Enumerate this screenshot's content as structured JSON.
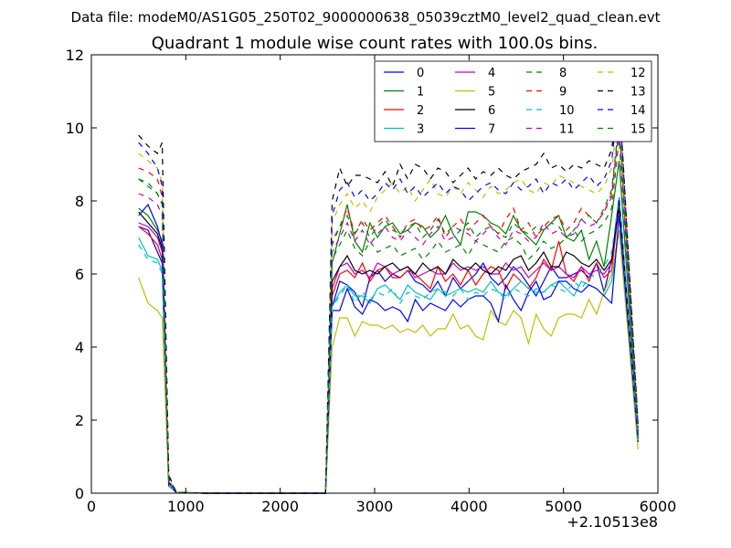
{
  "chart_data": {
    "type": "line",
    "suptitle": "Data file: modeM0/AS1G05_250T02_9000000638_05039cztM0_level2_quad_clean.evt",
    "title": "Quadrant 1 module wise count rates with 100.0s bins.",
    "xlabel": "",
    "ylabel": "",
    "x_offset_label": "+2.10513e8",
    "xlim": [
      0,
      6000
    ],
    "ylim": [
      0,
      12
    ],
    "x_ticks": [
      0,
      1000,
      2000,
      3000,
      4000,
      5000,
      6000
    ],
    "y_ticks": [
      0,
      2,
      4,
      6,
      8,
      10,
      12
    ],
    "x_tick_labels": [
      "0",
      "1000",
      "2000",
      "3000",
      "4000",
      "5000",
      "6000"
    ],
    "y_tick_labels": [
      "0",
      "2",
      "4",
      "6",
      "8",
      "10",
      "12"
    ],
    "grid": false,
    "legend_position": "top-right",
    "series": [
      {
        "name": "0",
        "color": "#0000ff",
        "dash": "solid",
        "values": [
          7.3,
          7.2,
          6.6,
          6.3,
          0.2,
          5.1,
          5.8,
          5.7,
          5.5,
          5.1,
          5.9,
          6.1,
          5.8,
          6.0,
          5.9,
          6.1,
          5.8,
          5.7,
          5.5,
          5.8,
          5.4,
          5.9,
          5.6,
          5.8,
          6.0,
          6.3,
          5.9,
          5.7,
          5.9,
          6.2,
          6.0,
          5.7,
          5.4,
          5.8,
          6.2,
          5.9,
          5.9,
          6.0,
          6.1,
          5.9,
          6.3,
          5.5,
          6.4,
          8.1,
          1.5
        ]
      },
      {
        "name": "1",
        "color": "#008000",
        "dash": "solid",
        "values": [
          7.8,
          7.6,
          7.2,
          6.9,
          0.3,
          6.3,
          7.1,
          7.9,
          6.9,
          6.6,
          7.4,
          7.0,
          7.3,
          7.4,
          7.1,
          7.2,
          7.4,
          7.3,
          7.0,
          7.2,
          7.6,
          7.1,
          6.8,
          7.7,
          7.7,
          7.6,
          7.4,
          7.3,
          7.1,
          7.6,
          7.2,
          7.0,
          6.8,
          7.2,
          7.4,
          7.6,
          7.0,
          6.9,
          7.2,
          6.4,
          6.9,
          6.2,
          7.6,
          9.1,
          1.6
        ]
      },
      {
        "name": "2",
        "color": "#ff0000",
        "dash": "solid",
        "values": [
          7.3,
          7.1,
          6.8,
          6.4,
          0.3,
          5.4,
          6.0,
          6.1,
          5.9,
          6.3,
          5.8,
          6.1,
          6.2,
          5.9,
          5.9,
          6.1,
          6.0,
          5.8,
          5.6,
          6.2,
          5.8,
          6.0,
          5.7,
          6.1,
          5.7,
          6.0,
          6.2,
          6.1,
          5.6,
          6.0,
          5.8,
          5.6,
          5.9,
          6.4,
          6.1,
          6.9,
          6.0,
          5.8,
          6.2,
          5.8,
          6.3,
          5.9,
          6.1,
          7.9,
          1.5
        ]
      },
      {
        "name": "3",
        "color": "#00bfbf",
        "dash": "solid",
        "values": [
          7.0,
          6.5,
          6.4,
          6.1,
          0.2,
          5.1,
          5.5,
          5.7,
          5.4,
          5.4,
          5.2,
          5.6,
          5.7,
          5.5,
          5.3,
          5.7,
          5.5,
          5.4,
          5.3,
          5.6,
          5.4,
          5.5,
          5.6,
          5.5,
          5.6,
          5.5,
          5.8,
          5.5,
          5.4,
          5.6,
          5.8,
          5.6,
          5.5,
          5.5,
          5.7,
          5.8,
          5.6,
          5.4,
          5.8,
          5.7,
          5.6,
          5.4,
          5.8,
          7.2,
          1.4
        ]
      },
      {
        "name": "4",
        "color": "#bf00bf",
        "dash": "solid",
        "values": [
          7.4,
          7.3,
          7.0,
          6.6,
          0.3,
          5.6,
          6.2,
          6.3,
          6.0,
          6.1,
          5.9,
          6.3,
          6.2,
          6.0,
          6.1,
          6.2,
          5.9,
          6.0,
          6.1,
          6.0,
          6.0,
          6.3,
          6.1,
          6.2,
          6.1,
          6.2,
          6.0,
          6.0,
          6.3,
          6.1,
          6.2,
          5.9,
          6.1,
          6.3,
          6.1,
          6.2,
          6.0,
          5.9,
          6.2,
          6.0,
          6.1,
          6.0,
          6.3,
          7.8,
          1.5
        ]
      },
      {
        "name": "5",
        "color": "#bfbf00",
        "dash": "solid",
        "values": [
          5.9,
          5.2,
          5.0,
          4.8,
          0.2,
          4.0,
          4.8,
          4.8,
          4.3,
          4.7,
          4.6,
          4.6,
          4.5,
          4.6,
          4.4,
          4.5,
          4.4,
          4.6,
          4.3,
          4.5,
          4.5,
          4.9,
          4.5,
          4.6,
          4.3,
          4.2,
          5.0,
          4.7,
          4.6,
          5.0,
          4.8,
          4.1,
          4.9,
          4.5,
          4.3,
          4.8,
          4.9,
          4.9,
          4.8,
          5.3,
          4.9,
          5.5,
          6.0,
          7.2,
          1.2
        ]
      },
      {
        "name": "6",
        "color": "#000000",
        "dash": "solid",
        "values": [
          7.7,
          7.4,
          7.1,
          6.7,
          0.3,
          5.8,
          6.2,
          6.5,
          6.1,
          6.0,
          6.1,
          6.0,
          6.2,
          6.3,
          6.1,
          6.2,
          6.0,
          6.3,
          6.1,
          6.2,
          6.0,
          6.4,
          6.2,
          6.1,
          6.3,
          6.1,
          6.0,
          6.2,
          6.1,
          6.4,
          6.5,
          6.1,
          6.3,
          6.6,
          6.2,
          6.2,
          6.6,
          6.5,
          6.3,
          6.2,
          6.4,
          6.1,
          6.4,
          7.9,
          1.5
        ]
      },
      {
        "name": "7",
        "color": "#0000ff",
        "dash": "solid",
        "values": [
          7.6,
          7.9,
          7.3,
          6.8,
          0.2,
          5.0,
          5.0,
          5.6,
          5.1,
          4.9,
          5.3,
          5.2,
          5.0,
          5.1,
          5.0,
          4.7,
          5.3,
          5.0,
          5.2,
          5.1,
          5.0,
          5.3,
          5.1,
          5.3,
          5.4,
          5.4,
          5.2,
          4.7,
          5.7,
          5.3,
          5.0,
          5.5,
          5.8,
          5.3,
          5.4,
          5.8,
          5.8,
          5.6,
          5.5,
          5.7,
          5.6,
          5.4,
          5.2,
          7.6,
          1.4
        ]
      },
      {
        "name": "8",
        "color": "#008000",
        "dash": "dashed",
        "values": [
          8.6,
          8.4,
          8.2,
          7.9,
          0.4,
          6.4,
          6.8,
          7.2,
          6.7,
          6.5,
          6.9,
          6.6,
          6.7,
          6.8,
          6.5,
          6.6,
          6.7,
          6.4,
          6.6,
          6.9,
          6.6,
          6.7,
          6.8,
          6.5,
          6.9,
          6.8,
          6.7,
          6.6,
          6.9,
          7.0,
          6.8,
          6.4,
          6.6,
          6.9,
          6.7,
          6.8,
          7.0,
          7.2,
          6.9,
          7.1,
          7.2,
          7.4,
          7.8,
          9.7,
          1.6
        ]
      },
      {
        "name": "9",
        "color": "#ff0000",
        "dash": "dashed",
        "values": [
          8.9,
          8.8,
          8.6,
          8.1,
          0.4,
          6.9,
          7.3,
          7.8,
          7.1,
          7.5,
          7.2,
          7.4,
          7.6,
          7.3,
          7.0,
          7.4,
          7.5,
          7.2,
          7.3,
          7.6,
          7.0,
          7.3,
          7.5,
          7.2,
          7.4,
          7.6,
          7.3,
          7.1,
          7.5,
          7.8,
          7.2,
          7.4,
          7.0,
          7.3,
          7.5,
          7.6,
          7.2,
          7.4,
          7.8,
          7.6,
          7.4,
          7.7,
          8.2,
          10.1,
          1.7
        ]
      },
      {
        "name": "10",
        "color": "#00bfbf",
        "dash": "dashed",
        "values": [
          6.8,
          6.4,
          6.3,
          6.0,
          0.2,
          5.1,
          5.4,
          5.7,
          5.2,
          5.5,
          5.3,
          5.5,
          5.4,
          5.6,
          5.2,
          5.5,
          5.4,
          5.3,
          5.5,
          5.6,
          5.5,
          5.4,
          5.6,
          5.3,
          5.5,
          5.4,
          5.6,
          5.5,
          5.3,
          5.6,
          5.5,
          5.4,
          5.6,
          5.5,
          5.7,
          5.6,
          5.5,
          5.8,
          5.6,
          5.9,
          6.0,
          6.2,
          6.6,
          8.1,
          1.4
        ]
      },
      {
        "name": "11",
        "color": "#bf00bf",
        "dash": "dashed",
        "values": [
          8.2,
          8.1,
          7.9,
          7.6,
          0.3,
          6.6,
          7.0,
          7.4,
          6.9,
          7.2,
          6.8,
          7.1,
          7.3,
          7.0,
          6.9,
          7.2,
          7.0,
          6.8,
          7.1,
          7.3,
          6.9,
          7.0,
          7.2,
          7.1,
          6.9,
          7.1,
          7.3,
          7.0,
          6.8,
          7.2,
          7.1,
          6.9,
          7.0,
          7.4,
          7.1,
          7.2,
          7.0,
          7.1,
          7.5,
          7.3,
          7.4,
          7.7,
          8.1,
          10.0,
          1.6
        ]
      },
      {
        "name": "12",
        "color": "#bfbf00",
        "dash": "dashed",
        "values": [
          9.3,
          9.1,
          8.9,
          8.5,
          0.4,
          7.4,
          7.9,
          8.2,
          7.8,
          8.0,
          7.7,
          8.1,
          8.3,
          8.5,
          8.2,
          8.4,
          8.0,
          8.3,
          8.6,
          8.2,
          8.1,
          8.4,
          8.2,
          8.5,
          8.3,
          8.1,
          8.4,
          8.2,
          8.3,
          8.5,
          8.6,
          8.3,
          8.2,
          8.5,
          8.4,
          8.7,
          8.6,
          8.5,
          8.4,
          8.3,
          8.2,
          8.4,
          8.9,
          10.6,
          1.8
        ]
      },
      {
        "name": "13",
        "color": "#000000",
        "dash": "dashed",
        "values": [
          9.8,
          9.5,
          9.3,
          9.6,
          0.5,
          8.0,
          8.9,
          8.4,
          8.7,
          8.7,
          8.6,
          8.5,
          8.8,
          8.4,
          9.0,
          8.6,
          9.0,
          8.9,
          8.6,
          8.9,
          8.8,
          8.5,
          8.7,
          8.9,
          8.6,
          8.8,
          8.7,
          8.9,
          8.7,
          8.6,
          8.8,
          8.9,
          9.0,
          9.3,
          8.9,
          9.0,
          8.8,
          9.0,
          8.9,
          9.1,
          9.0,
          8.9,
          9.4,
          11.0,
          1.9
        ]
      },
      {
        "name": "14",
        "color": "#0000ff",
        "dash": "dashed",
        "values": [
          9.6,
          9.3,
          8.9,
          8.4,
          0.4,
          7.6,
          8.3,
          8.5,
          8.1,
          8.3,
          8.0,
          8.2,
          8.5,
          8.3,
          8.6,
          8.2,
          8.4,
          8.1,
          8.3,
          8.5,
          8.2,
          8.4,
          8.3,
          8.0,
          8.2,
          8.4,
          8.5,
          8.3,
          8.2,
          8.5,
          8.3,
          8.4,
          8.6,
          8.2,
          8.5,
          8.4,
          8.6,
          8.3,
          8.5,
          8.7,
          8.4,
          8.6,
          9.1,
          10.9,
          1.8
        ]
      },
      {
        "name": "15",
        "color": "#008000",
        "dash": "dashed",
        "values": [
          8.6,
          8.5,
          8.2,
          7.9,
          0.3,
          6.8,
          7.3,
          7.6,
          7.1,
          7.4,
          7.0,
          7.3,
          7.5,
          7.2,
          7.1,
          7.3,
          7.4,
          7.0,
          7.2,
          7.5,
          7.1,
          7.3,
          7.2,
          7.4,
          7.0,
          7.2,
          7.3,
          7.1,
          7.0,
          7.4,
          7.2,
          7.1,
          7.3,
          7.2,
          7.4,
          7.3,
          7.0,
          7.2,
          7.5,
          7.6,
          7.4,
          7.8,
          8.3,
          10.2,
          1.7
        ]
      }
    ]
  }
}
